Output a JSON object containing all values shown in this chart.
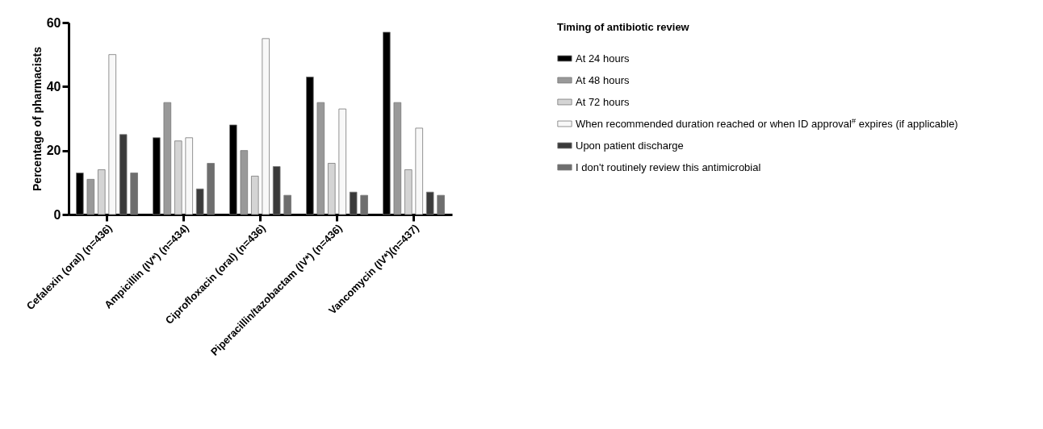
{
  "chart_data": {
    "type": "bar",
    "ylabel": "Percentage of pharmacists",
    "legend_title": "Timing of antibiotic review",
    "categories": [
      "Cefalexin (oral) (n=436)",
      "Ampicillin (IV*) (n=434)",
      "Ciprofloxacin (oral) (n=436)",
      "Piperacillin/tazobactam (IV*) (n=436)",
      "Vancomycin (IV*)(n=437)"
    ],
    "series": [
      {
        "name": "At 24 hours",
        "color": "#000000",
        "values": [
          13,
          24,
          28,
          43,
          57
        ]
      },
      {
        "name": "At 48 hours",
        "color": "#999999",
        "values": [
          11,
          35,
          20,
          35,
          35
        ]
      },
      {
        "name": "At 72 hours",
        "color": "#d4d4d4",
        "values": [
          14,
          23,
          12,
          16,
          14
        ]
      },
      {
        "name": "When recommended duration reached or when ID approval$^{#}$ expires (if applicable)",
        "color": "#f8f8f8",
        "values": [
          50,
          24,
          55,
          33,
          27
        ]
      },
      {
        "name": "Upon patient discharge",
        "color": "#3a3a3a",
        "values": [
          25,
          8,
          15,
          7,
          7
        ]
      },
      {
        "name": "I don't routinely review this antimicrobial",
        "color": "#6e6e6e",
        "values": [
          13,
          16,
          6,
          6,
          6
        ]
      }
    ],
    "ylim": [
      0,
      60
    ],
    "yticks": [
      0,
      20,
      40,
      60
    ],
    "grid": false,
    "legend": "top right"
  }
}
